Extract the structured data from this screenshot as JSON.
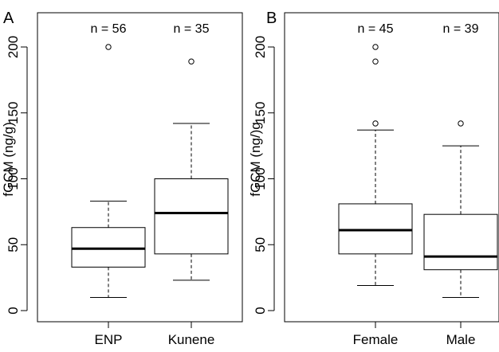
{
  "chart_data": [
    {
      "type": "box",
      "panel_label": "A",
      "ylabel": "fGCM (ng/g)",
      "ylim": [
        0,
        220
      ],
      "yticks": [
        0,
        50,
        100,
        150,
        200
      ],
      "categories": [
        "ENP",
        "Kunene"
      ],
      "annotations": [
        "n = 56",
        "n = 35"
      ],
      "boxes": [
        {
          "whisker_low": 10,
          "q1": 33,
          "median": 47,
          "q3": 63,
          "whisker_high": 83,
          "outliers": [
            200
          ]
        },
        {
          "whisker_low": 23,
          "q1": 43,
          "median": 74,
          "q3": 100,
          "whisker_high": 142,
          "outliers": [
            189
          ]
        }
      ]
    },
    {
      "type": "box",
      "panel_label": "B",
      "ylabel": "fGCM (ng/)g",
      "ylim": [
        0,
        220
      ],
      "yticks": [
        0,
        50,
        100,
        150,
        200
      ],
      "categories": [
        "Female",
        "Male"
      ],
      "annotations": [
        "n = 45",
        "n = 39"
      ],
      "boxes": [
        {
          "whisker_low": 19,
          "q1": 43,
          "median": 61,
          "q3": 81,
          "whisker_high": 137,
          "outliers": [
            142,
            189,
            200
          ]
        },
        {
          "whisker_low": 10,
          "q1": 31,
          "median": 41,
          "q3": 73,
          "whisker_high": 125,
          "outliers": [
            142
          ]
        }
      ]
    }
  ]
}
